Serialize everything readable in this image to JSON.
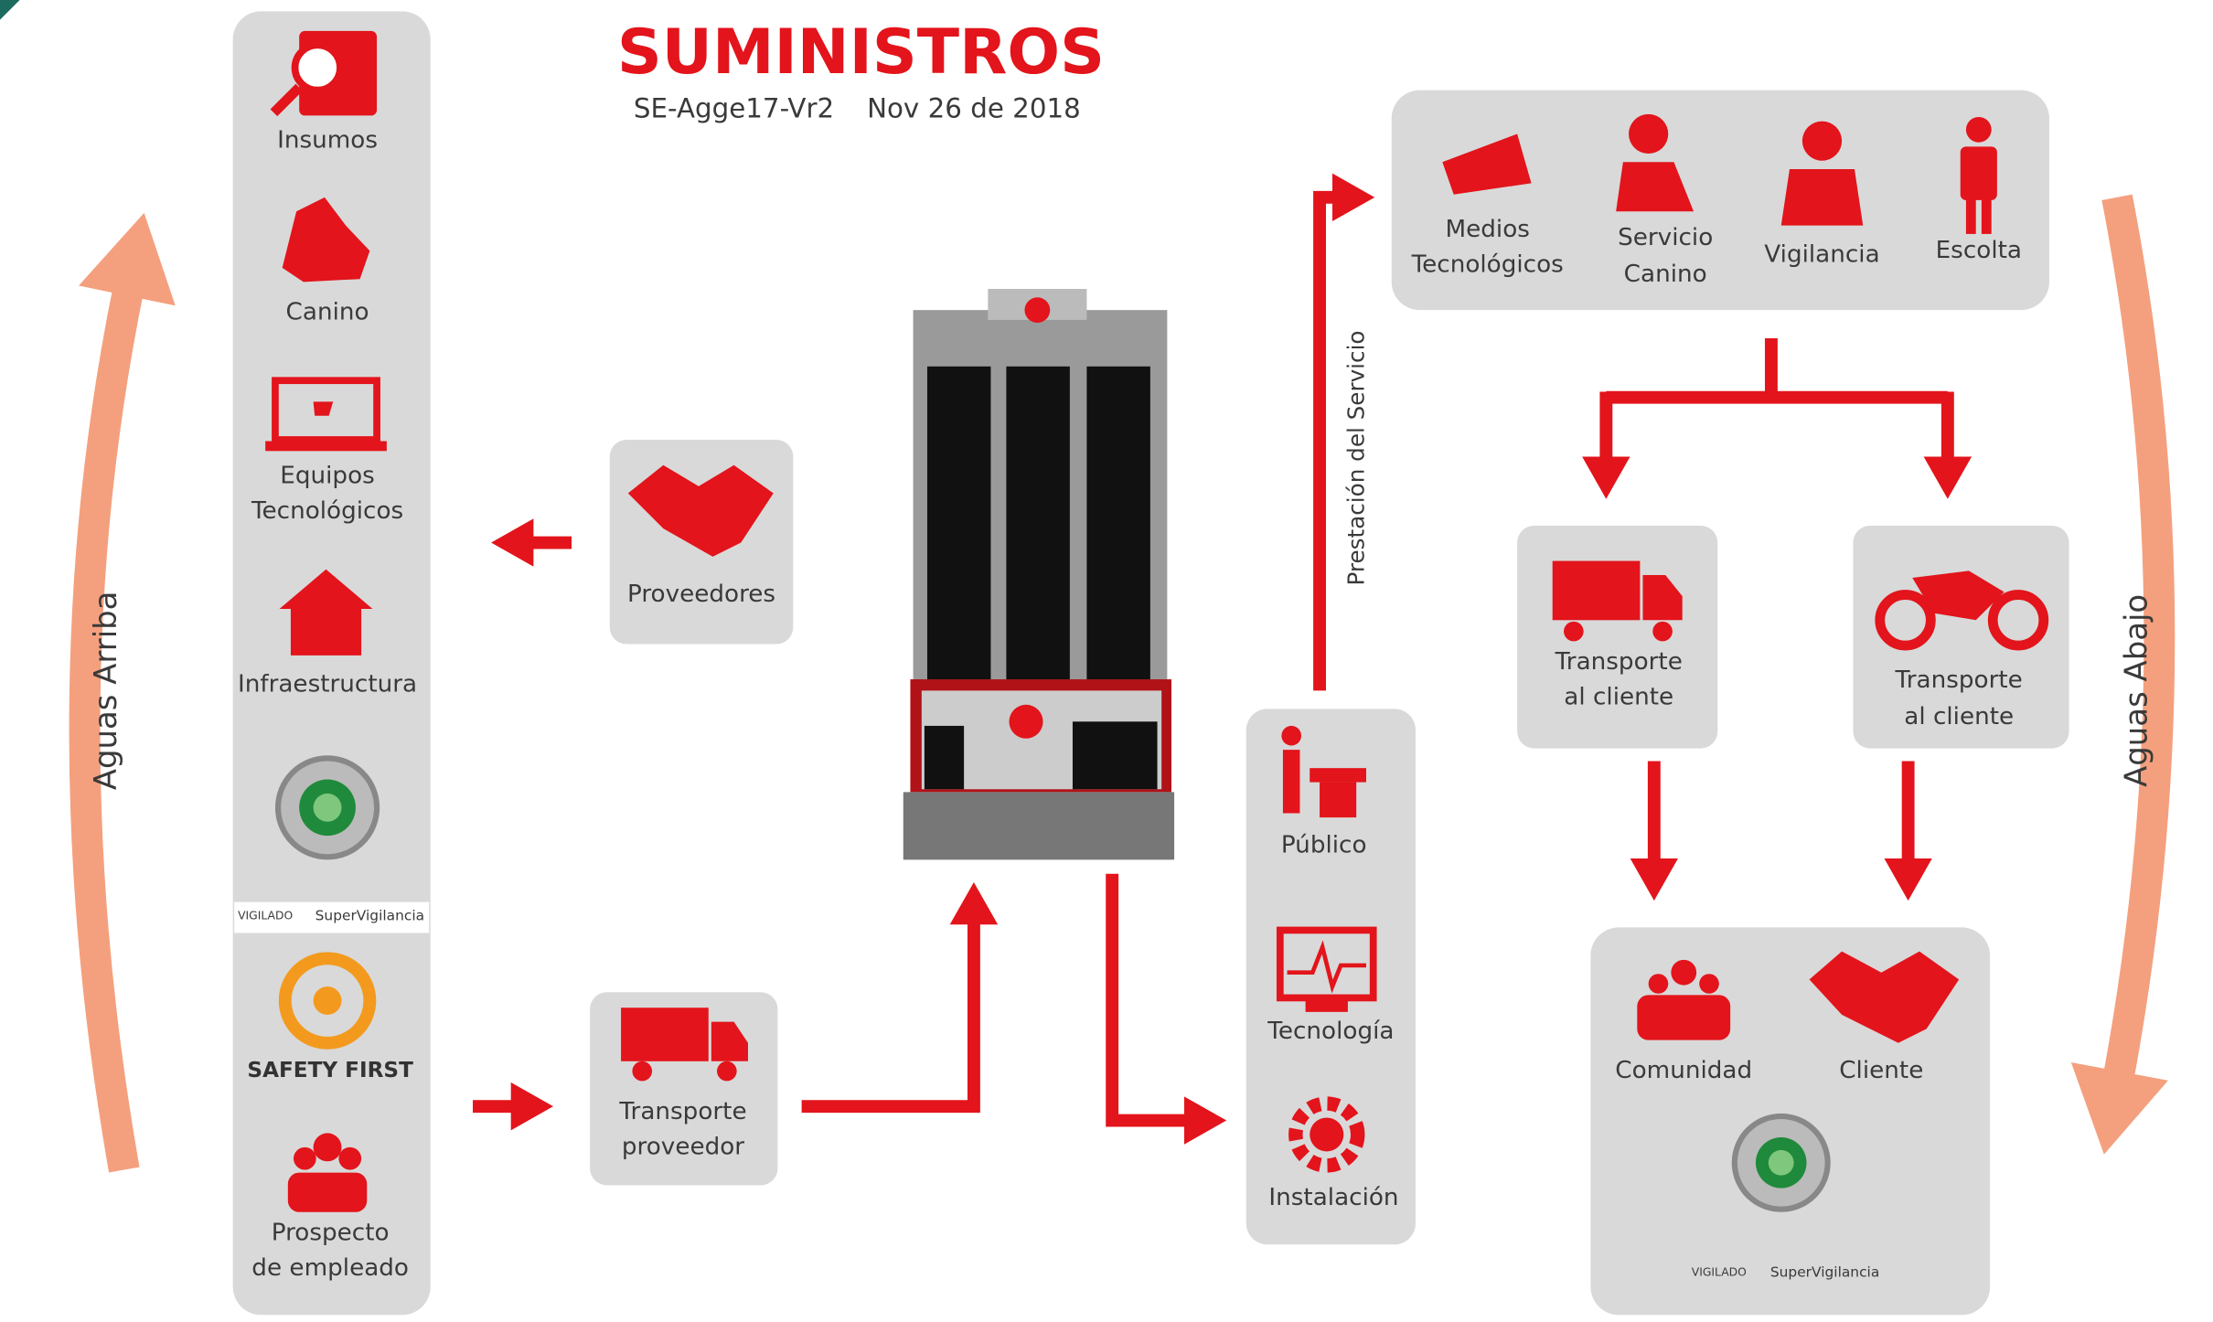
{
  "header": {
    "title": "SUMINISTROS",
    "code": "SE-Agge17-Vr2",
    "date": "Nov 26 de 2018"
  },
  "side_labels": {
    "left": "Aguas Arriba",
    "right": "Aguas Abajo"
  },
  "supplies": [
    {
      "label": [
        "Insumos"
      ]
    },
    {
      "label": [
        "Canino"
      ]
    },
    {
      "label": [
        "Equipos",
        "Tecnológicos"
      ]
    },
    {
      "label": [
        "Infraestructura"
      ]
    }
  ],
  "seal": {
    "vigilado": "VIGILADO",
    "entity": "SuperVigilancia"
  },
  "safety": "SAFETY FIRST",
  "employee": [
    "Prospecto",
    "de empleado"
  ],
  "providers": "Proveedores",
  "supplier_transport": [
    "Transporte",
    "proveedor"
  ],
  "service_flow_label": "Prestación del Servicio",
  "channels": [
    [
      "Público"
    ],
    [
      "Tecnología"
    ],
    [
      "Instalación"
    ]
  ],
  "services": [
    [
      "Medios",
      "Tecnológicos"
    ],
    [
      "Servicio",
      "Canino"
    ],
    [
      "Vigilancia"
    ],
    [
      "Escolta"
    ]
  ],
  "deliveries": [
    [
      "Transporte",
      "al cliente"
    ],
    [
      "Transporte",
      "al cliente"
    ]
  ],
  "recipients": [
    [
      "Comunidad"
    ],
    [
      "Cliente"
    ]
  ],
  "client_seal": {
    "vigilado": "VIGILADO",
    "entity": "SuperVigilancia"
  }
}
